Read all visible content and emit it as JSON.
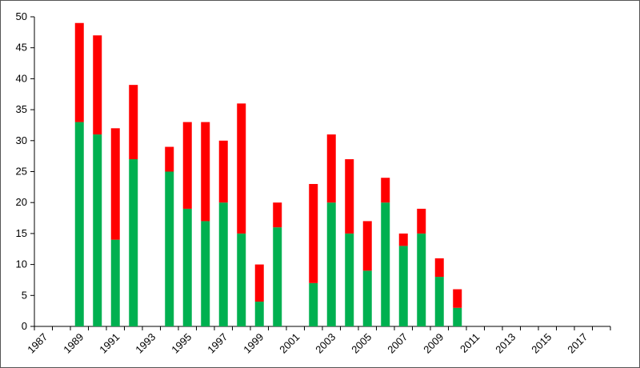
{
  "chart_data": {
    "type": "bar",
    "stacked": true,
    "title": "",
    "xlabel": "",
    "ylabel": "",
    "ylim": [
      0,
      50
    ],
    "yticks": [
      0,
      5,
      10,
      15,
      20,
      25,
      30,
      35,
      40,
      45,
      50
    ],
    "grid": false,
    "legend": "none",
    "x_years": [
      1987,
      1988,
      1989,
      1990,
      1991,
      1992,
      1993,
      1994,
      1995,
      1996,
      1997,
      1998,
      1999,
      2000,
      2001,
      2002,
      2003,
      2004,
      2005,
      2006,
      2007,
      2008,
      2009,
      2010,
      2011,
      2012,
      2013,
      2014,
      2015,
      2016,
      2017,
      2018
    ],
    "x_tick_labels": [
      "1987",
      "1989",
      "1991",
      "1993",
      "1995",
      "1997",
      "1999",
      "2001",
      "2003",
      "2005",
      "2007",
      "2009",
      "2011",
      "2013",
      "2015",
      "2017"
    ],
    "series": [
      {
        "color": "#00b050",
        "values": [
          0,
          0,
          33,
          31,
          14,
          27,
          0,
          25,
          19,
          17,
          20,
          15,
          4,
          16,
          0,
          7,
          20,
          15,
          9,
          20,
          13,
          15,
          8,
          3,
          0,
          0,
          0,
          0,
          0,
          0,
          0,
          0
        ]
      },
      {
        "color": "#ff0000",
        "values": [
          0,
          0,
          16,
          16,
          18,
          12,
          0,
          4,
          14,
          16,
          10,
          21,
          6,
          4,
          0,
          16,
          11,
          12,
          8,
          4,
          2,
          4,
          3,
          3,
          0,
          0,
          0,
          0,
          0,
          0,
          0,
          0
        ]
      }
    ]
  }
}
